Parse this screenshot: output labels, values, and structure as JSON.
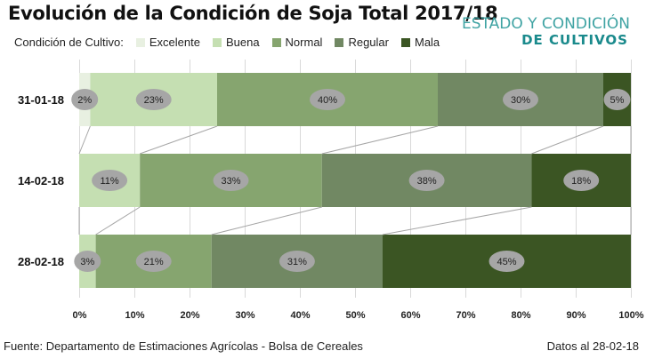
{
  "header": {
    "title": "Evolución de la Condición de Soja Total 2017/18",
    "brand_line1": "ESTADO Y CONDICIÓN",
    "brand_line2": "DE CULTIVOS"
  },
  "legend": {
    "title": "Condición de Cultivo:",
    "items": [
      {
        "label": "Excelente",
        "color": "#e8f0e1"
      },
      {
        "label": "Buena",
        "color": "#c5dfb2"
      },
      {
        "label": "Normal",
        "color": "#86a56f"
      },
      {
        "label": "Regular",
        "color": "#718863"
      },
      {
        "label": "Mala",
        "color": "#3b5523"
      }
    ]
  },
  "footer": {
    "source": "Fuente: Departamento de Estimaciones Agrícolas - Bolsa de Cereales",
    "date": "Datos al 28-02-18"
  },
  "chart_data": {
    "type": "bar",
    "orientation": "horizontal",
    "stacked": "percent",
    "title": "Evolución de la Condición de Soja Total 2017/18",
    "xlabel": "",
    "ylabel": "",
    "xlim": [
      0,
      100
    ],
    "x_ticks": [
      "0%",
      "10%",
      "20%",
      "30%",
      "40%",
      "50%",
      "60%",
      "70%",
      "80%",
      "90%",
      "100%"
    ],
    "grid": true,
    "legend_position": "top-left",
    "series_lines": true,
    "categories": [
      "31-01-18",
      "14-02-18",
      "28-02-18"
    ],
    "series": [
      {
        "name": "Excelente",
        "color": "#e8f0e1",
        "values": [
          2,
          0,
          0
        ]
      },
      {
        "name": "Buena",
        "color": "#c5dfb2",
        "values": [
          23,
          11,
          3
        ]
      },
      {
        "name": "Normal",
        "color": "#86a56f",
        "values": [
          40,
          33,
          21
        ]
      },
      {
        "name": "Regular",
        "color": "#718863",
        "values": [
          30,
          38,
          31
        ]
      },
      {
        "name": "Mala",
        "color": "#3b5523",
        "values": [
          5,
          18,
          45
        ]
      }
    ],
    "data_labels": [
      [
        "2%",
        null,
        null
      ],
      [
        "23%",
        "11%",
        "3%"
      ],
      [
        "40%",
        "33%",
        "21%"
      ],
      [
        "30%",
        "38%",
        "31%"
      ],
      [
        "5%",
        "18%",
        "45%"
      ]
    ]
  }
}
